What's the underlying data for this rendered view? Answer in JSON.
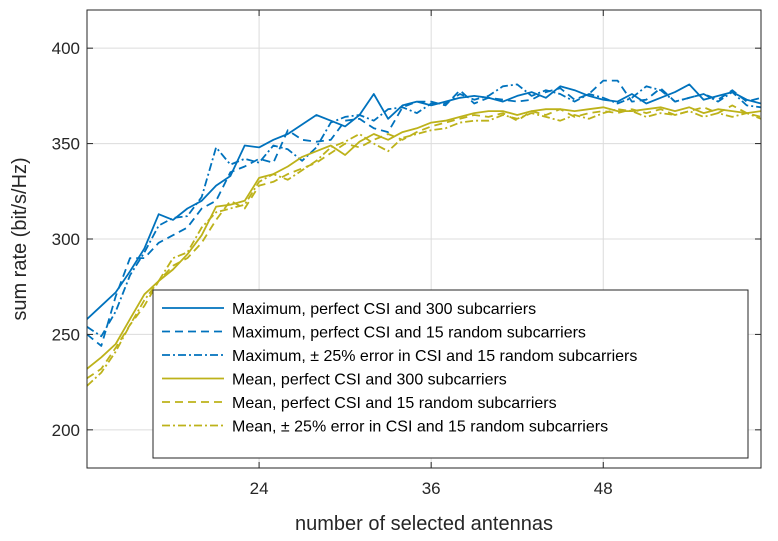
{
  "chart_data": {
    "type": "line",
    "title": "",
    "xlabel": "number of selected antennas",
    "ylabel": "sum rate (bit/s/Hz)",
    "xlim": [
      12,
      59
    ],
    "ylim": [
      180,
      420
    ],
    "xticks": [
      24,
      36,
      48
    ],
    "yticks": [
      200,
      250,
      300,
      350,
      400
    ],
    "grid": true,
    "legend_position": "bottom-right",
    "colors": {
      "maximum": "#0072BD",
      "mean": "#BDB21A"
    },
    "series": [
      {
        "name": "Maximum, perfect CSI and 300 subcarriers",
        "style": "solid",
        "color": "#0072BD",
        "x": [
          12,
          13,
          14,
          15,
          16,
          17,
          18,
          19,
          20,
          21,
          22,
          23,
          24,
          25,
          26,
          27,
          28,
          29,
          30,
          31,
          32,
          33,
          34,
          35,
          36,
          37,
          38,
          39,
          40,
          41,
          42,
          43,
          44,
          45,
          46,
          47,
          48,
          49,
          50,
          51,
          52,
          53,
          54,
          55,
          56,
          57,
          58,
          59
        ],
        "y": [
          258,
          265,
          272,
          283,
          295,
          313,
          310,
          316,
          320,
          328,
          333,
          349,
          348,
          352,
          355,
          360,
          365,
          362,
          359,
          365,
          376,
          363,
          370,
          372,
          370,
          372,
          374,
          375,
          374,
          372,
          375,
          377,
          374,
          380,
          378,
          375,
          373,
          372,
          376,
          371,
          374,
          377,
          381,
          373,
          375,
          377,
          373,
          371
        ]
      },
      {
        "name": "Maximum, perfect CSI and 15 random subcarriers",
        "style": "dashed",
        "color": "#0072BD",
        "x": [
          12,
          13,
          14,
          15,
          16,
          17,
          18,
          19,
          20,
          21,
          22,
          23,
          24,
          25,
          26,
          27,
          28,
          29,
          30,
          31,
          32,
          33,
          34,
          35,
          36,
          37,
          38,
          39,
          40,
          41,
          42,
          43,
          44,
          45,
          46,
          47,
          48,
          49,
          50,
          51,
          52,
          53,
          54,
          55,
          56,
          57,
          58,
          59
        ],
        "y": [
          250,
          244,
          270,
          290,
          290,
          298,
          302,
          306,
          316,
          320,
          335,
          338,
          342,
          340,
          357,
          352,
          351,
          352,
          362,
          363,
          358,
          356,
          369,
          372,
          372,
          370,
          378,
          371,
          374,
          373,
          372,
          373,
          377,
          379,
          373,
          376,
          383,
          383,
          372,
          373,
          379,
          372,
          374,
          376,
          373,
          378,
          372,
          374
        ]
      },
      {
        "name": "Maximum, ± 25% error in CSI and 15 random subcarriers",
        "style": "dashdot",
        "color": "#0072BD",
        "x": [
          12,
          13,
          14,
          15,
          16,
          17,
          18,
          19,
          20,
          21,
          22,
          23,
          24,
          25,
          26,
          27,
          28,
          29,
          30,
          31,
          32,
          33,
          34,
          35,
          36,
          37,
          38,
          39,
          40,
          41,
          42,
          43,
          44,
          45,
          46,
          47,
          48,
          49,
          50,
          51,
          52,
          53,
          54,
          55,
          56,
          57,
          58,
          59
        ],
        "y": [
          254,
          249,
          262,
          281,
          293,
          307,
          311,
          312,
          322,
          348,
          339,
          342,
          340,
          349,
          347,
          341,
          348,
          361,
          364,
          365,
          362,
          368,
          369,
          366,
          371,
          371,
          376,
          373,
          375,
          380,
          381,
          375,
          378,
          376,
          372,
          376,
          374,
          371,
          374,
          380,
          378,
          372,
          374,
          376,
          372,
          377,
          370,
          369
        ]
      },
      {
        "name": "Mean, perfect CSI and 300 subcarriers",
        "style": "solid",
        "color": "#BDB21A",
        "x": [
          12,
          13,
          14,
          15,
          16,
          17,
          18,
          19,
          20,
          21,
          22,
          23,
          24,
          25,
          26,
          27,
          28,
          29,
          30,
          31,
          32,
          33,
          34,
          35,
          36,
          37,
          38,
          39,
          40,
          41,
          42,
          43,
          44,
          45,
          46,
          47,
          48,
          49,
          50,
          51,
          52,
          53,
          54,
          55,
          56,
          57,
          58,
          59
        ],
        "y": [
          232,
          238,
          245,
          258,
          271,
          278,
          284,
          292,
          302,
          317,
          318,
          320,
          332,
          334,
          338,
          343,
          346,
          349,
          344,
          351,
          355,
          352,
          356,
          358,
          361,
          362,
          364,
          366,
          367,
          367,
          365,
          367,
          368,
          368,
          367,
          368,
          369,
          367,
          367,
          368,
          369,
          367,
          369,
          366,
          368,
          367,
          366,
          367
        ]
      },
      {
        "name": "Mean, perfect CSI and 15 random subcarriers",
        "style": "dashed",
        "color": "#BDB21A",
        "x": [
          12,
          13,
          14,
          15,
          16,
          17,
          18,
          19,
          20,
          21,
          22,
          23,
          24,
          25,
          26,
          27,
          28,
          29,
          30,
          31,
          32,
          33,
          34,
          35,
          36,
          37,
          38,
          39,
          40,
          41,
          42,
          43,
          44,
          45,
          46,
          47,
          48,
          49,
          50,
          51,
          52,
          53,
          54,
          55,
          56,
          57,
          58,
          59
        ],
        "y": [
          227,
          232,
          243,
          255,
          265,
          278,
          286,
          290,
          298,
          310,
          320,
          316,
          328,
          330,
          334,
          337,
          340,
          345,
          350,
          348,
          352,
          355,
          352,
          356,
          359,
          361,
          363,
          365,
          364,
          366,
          362,
          367,
          365,
          368,
          364,
          366,
          367,
          366,
          368,
          366,
          368,
          365,
          367,
          369,
          366,
          370,
          366,
          364
        ]
      },
      {
        "name": "Mean, ± 25% error in CSI and 15 random subcarriers",
        "style": "dashdot",
        "color": "#BDB21A",
        "x": [
          12,
          13,
          14,
          15,
          16,
          17,
          18,
          19,
          20,
          21,
          22,
          23,
          24,
          25,
          26,
          27,
          28,
          29,
          30,
          31,
          32,
          33,
          34,
          35,
          36,
          37,
          38,
          39,
          40,
          41,
          42,
          43,
          44,
          45,
          46,
          47,
          48,
          49,
          50,
          51,
          52,
          53,
          54,
          55,
          56,
          57,
          58,
          59
        ],
        "y": [
          223,
          230,
          241,
          255,
          268,
          278,
          290,
          293,
          306,
          314,
          316,
          318,
          330,
          334,
          331,
          336,
          341,
          348,
          351,
          355,
          350,
          346,
          353,
          355,
          357,
          358,
          361,
          362,
          362,
          365,
          363,
          366,
          364,
          362,
          365,
          363,
          366,
          368,
          367,
          364,
          366,
          365,
          367,
          364,
          366,
          364,
          366,
          363
        ]
      }
    ]
  }
}
